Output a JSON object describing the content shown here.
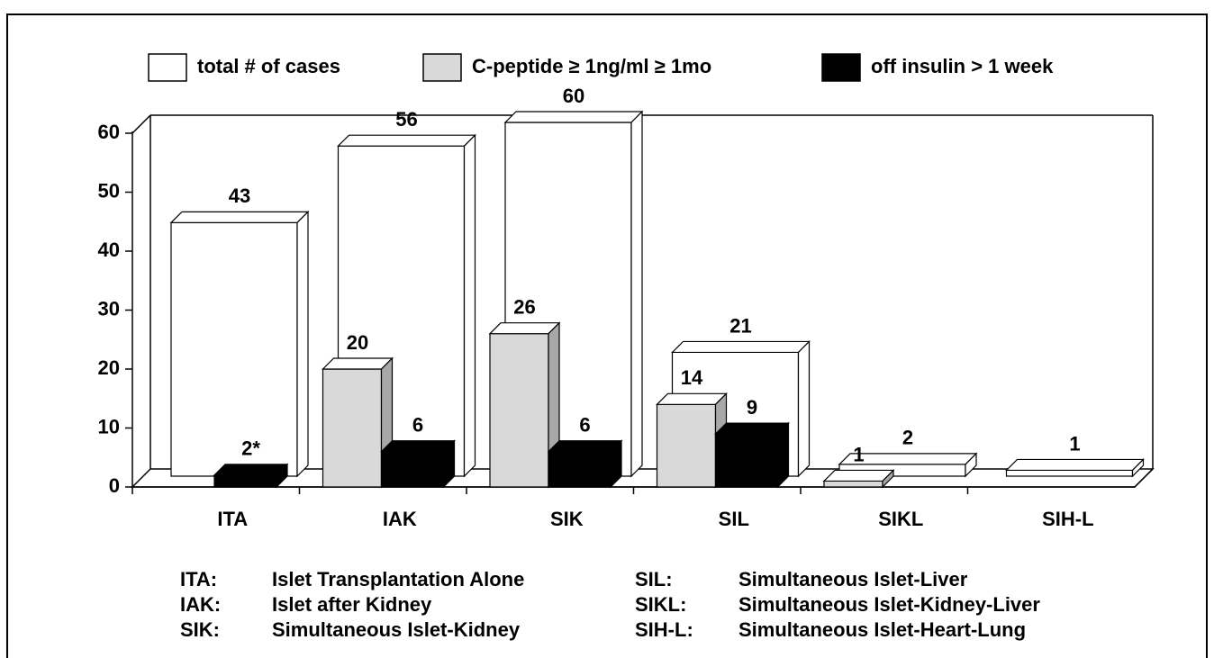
{
  "chart_data": {
    "type": "bar3d",
    "categories": [
      "ITA",
      "IAK",
      "SIK",
      "SIL",
      "SIKL",
      "SIH-L"
    ],
    "series": [
      {
        "name": "total # of cases",
        "color": "#ffffff",
        "values": [
          43,
          56,
          60,
          21,
          2,
          1
        ]
      },
      {
        "name": "C-peptide ≥ 1ng/ml ≥ 1mo",
        "color": "#d9d9d9",
        "values": [
          null,
          20,
          26,
          14,
          1,
          null
        ]
      },
      {
        "name": "off insulin > 1 week",
        "color": "#000000",
        "values": [
          2,
          6,
          6,
          9,
          null,
          null
        ],
        "value_labels": [
          "2*",
          "6",
          "6",
          "9",
          null,
          null
        ]
      }
    ],
    "ylim": [
      0,
      60
    ],
    "yticks": [
      0,
      10,
      20,
      30,
      40,
      50,
      60
    ],
    "notes": [
      {
        "abbr": "ITA:",
        "text": "Islet Transplantation Alone"
      },
      {
        "abbr": "IAK:",
        "text": "Islet after Kidney"
      },
      {
        "abbr": "SIK:",
        "text": "Simultaneous Islet-Kidney"
      },
      {
        "abbr": "SIL:",
        "text": "Simultaneous Islet-Liver"
      },
      {
        "abbr": "SIKL:",
        "text": "Simultaneous Islet-Kidney-Liver"
      },
      {
        "abbr": "SIH-L:",
        "text": "Simultaneous Islet-Heart-Lung"
      }
    ]
  }
}
